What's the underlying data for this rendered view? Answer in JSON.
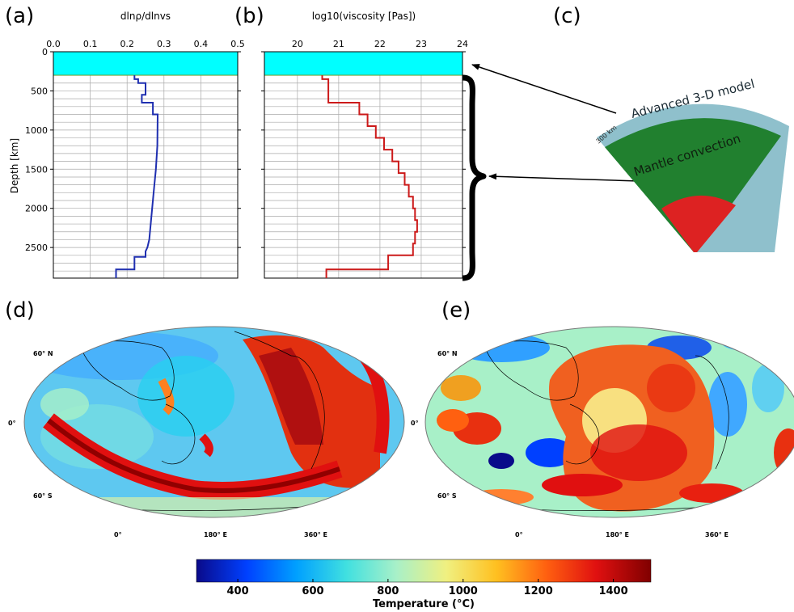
{
  "panels": {
    "a": "(a)",
    "b": "(b)",
    "c": "(c)",
    "d": "(d)",
    "e": "(e)"
  },
  "colors": {
    "lith": "#00ffff",
    "blue_line": "#1f2fb0",
    "red_line": "#cc1a1a",
    "wedge_outer": "#8fc0cc",
    "wedge_mantle": "#21802f",
    "wedge_core": "#dd2222"
  },
  "chart_data": [
    {
      "type": "line",
      "panel": "a",
      "title": "dlnρ/dlnvs",
      "xlabel": "dlnρ/dlnvs",
      "ylabel": "Depth [km]",
      "xlim": [
        0.0,
        0.5
      ],
      "ylim": [
        2891,
        0
      ],
      "xticks": [
        "0.0",
        "0.1",
        "0.2",
        "0.3",
        "0.4",
        "0.5"
      ],
      "yticks": [
        "0",
        "500",
        "1000",
        "1500",
        "2000",
        "2500"
      ],
      "xtick_values": [
        0.0,
        0.1,
        0.2,
        0.3,
        0.4,
        0.5
      ],
      "ytick_values": [
        0,
        500,
        1000,
        1500,
        2000,
        2500
      ],
      "grid": true,
      "shaded_band": {
        "from": 0,
        "to": 300
      },
      "series": [
        {
          "x": [
            0.22,
            0.22,
            0.23,
            0.23,
            0.25,
            0.25,
            0.24,
            0.24,
            0.27,
            0.27,
            0.283,
            0.282,
            0.278,
            0.272,
            0.266,
            0.26,
            0.255,
            0.25,
            0.25,
            0.22,
            0.22,
            0.17,
            0.17
          ],
          "y": [
            300,
            350,
            350,
            400,
            400,
            550,
            550,
            650,
            650,
            800,
            800,
            1200,
            1500,
            1800,
            2100,
            2400,
            2500,
            2550,
            2620,
            2620,
            2780,
            2780,
            2891
          ]
        }
      ]
    },
    {
      "type": "line",
      "panel": "b",
      "title": "log10(viscosity [Pas])",
      "xlabel": "log10(viscosity [Pas])",
      "xlim": [
        19.2,
        24
      ],
      "ylim": [
        2891,
        0
      ],
      "xticks": [
        "20",
        "21",
        "22",
        "23",
        "24"
      ],
      "xtick_values": [
        20,
        21,
        22,
        23,
        24
      ],
      "ytick_values": [
        0,
        500,
        1000,
        1500,
        2000,
        2500
      ],
      "grid": true,
      "shaded_band": {
        "from": 0,
        "to": 300
      },
      "series": [
        {
          "x": [
            20.6,
            20.6,
            20.75,
            20.75,
            21.5,
            21.5,
            21.7,
            21.7,
            21.9,
            21.9,
            22.1,
            22.1,
            22.3,
            22.3,
            22.45,
            22.45,
            22.6,
            22.6,
            22.7,
            22.7,
            22.8,
            22.8,
            22.85,
            22.85,
            22.9,
            22.9,
            22.85,
            22.85,
            22.8,
            22.8,
            22.2,
            22.2,
            20.7,
            20.7
          ],
          "y": [
            300,
            350,
            350,
            650,
            650,
            800,
            800,
            950,
            950,
            1100,
            1100,
            1250,
            1250,
            1400,
            1400,
            1550,
            1550,
            1700,
            1700,
            1850,
            1850,
            2000,
            2000,
            2150,
            2150,
            2300,
            2300,
            2450,
            2450,
            2600,
            2600,
            2780,
            2780,
            2891
          ]
        }
      ]
    },
    {
      "type": "heatmap",
      "panel": "d",
      "lat_labels": [
        "60° N",
        "0°",
        "60° S"
      ],
      "lon_labels": [
        "0°",
        "180° E",
        "360° E"
      ]
    },
    {
      "type": "heatmap",
      "panel": "e",
      "lat_labels": [
        "60° N",
        "0°",
        "60° S"
      ],
      "lon_labels": [
        "0°",
        "180° E",
        "360° E"
      ]
    }
  ],
  "wedge": {
    "outer_label": "Advanced 3-D model",
    "mid_label": "Mantle convection",
    "depth_label": "300 km"
  },
  "colorbar": {
    "range": [
      290,
      1500
    ],
    "ticks": [
      400,
      600,
      800,
      1000,
      1200,
      1400
    ],
    "tick_labels": [
      "400",
      "600",
      "800",
      "1000",
      "1200",
      "1400"
    ],
    "label": "Temperature (°C)",
    "stops": [
      "#0a0a8a",
      "#0040ff",
      "#00a0ff",
      "#40e0e0",
      "#a8f0c8",
      "#f0f080",
      "#ffc020",
      "#ff6010",
      "#e01010",
      "#800000"
    ]
  }
}
